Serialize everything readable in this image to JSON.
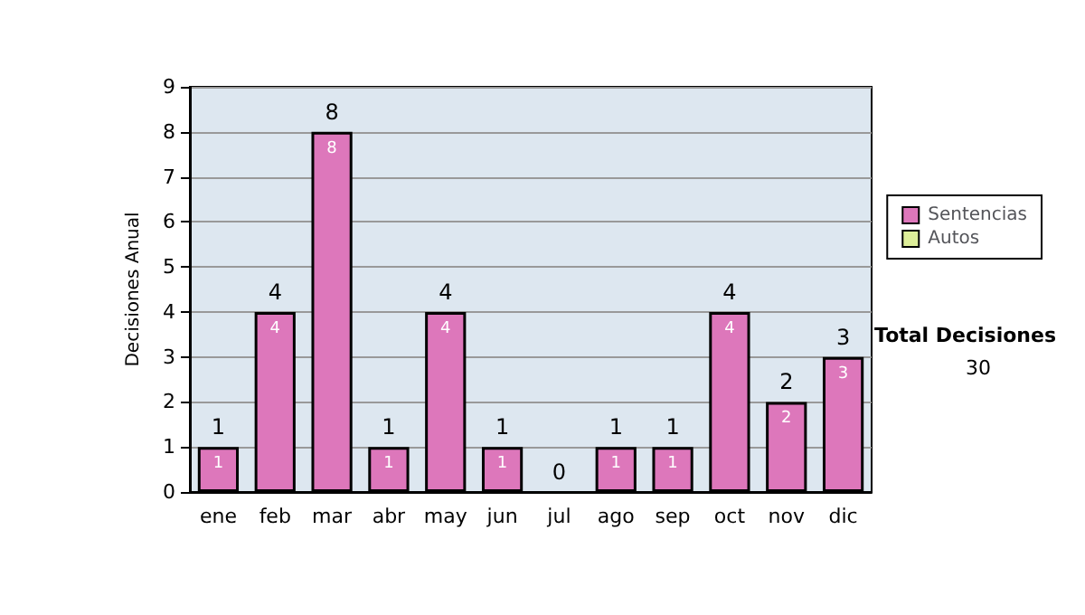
{
  "chart_data": {
    "type": "bar",
    "ylabel": "Decisiones Anual",
    "categories": [
      "ene",
      "feb",
      "mar",
      "abr",
      "may",
      "jun",
      "jul",
      "ago",
      "sep",
      "oct",
      "nov",
      "dic"
    ],
    "stacked": true,
    "series": [
      {
        "name": "Sentencias",
        "color": "#dd77bb",
        "values": [
          1,
          4,
          8,
          1,
          4,
          1,
          0,
          1,
          1,
          4,
          2,
          3
        ],
        "value_labels": [
          "1",
          "4",
          "8",
          "1",
          "4",
          "1",
          null,
          "1",
          "1",
          "4",
          "2",
          "3"
        ]
      },
      {
        "name": "Autos",
        "color": "#ddee99",
        "values": [
          0,
          0,
          0,
          0,
          0,
          0,
          0,
          0,
          0,
          0,
          0,
          0
        ]
      }
    ],
    "totals": [
      "1",
      "4",
      "8",
      "1",
      "4",
      "1",
      "0",
      "1",
      "1",
      "4",
      "2",
      "3"
    ],
    "ylim": [
      0,
      9
    ],
    "yticks": [
      0,
      1,
      2,
      3,
      4,
      5,
      6,
      7,
      8,
      9
    ],
    "grid": "y",
    "legend": "right",
    "annotations": [
      "Total Decisiones",
      "30"
    ]
  }
}
